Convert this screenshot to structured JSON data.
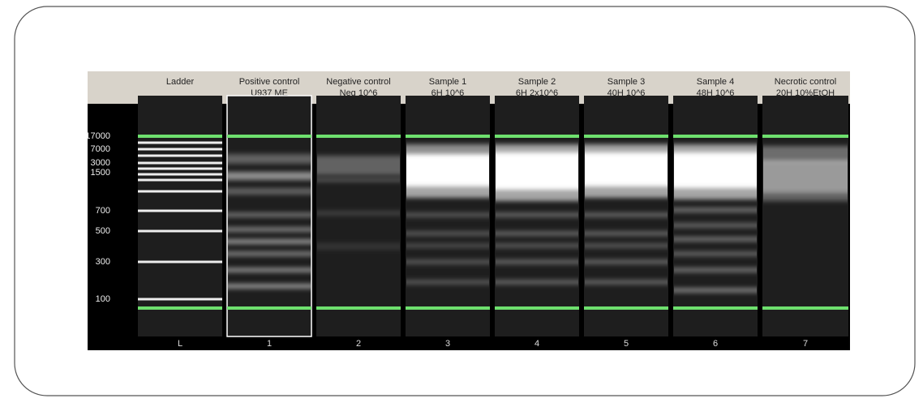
{
  "lanes": [
    {
      "title": "Ladder",
      "number": "L"
    },
    {
      "title": "Positive control",
      "subtitle": "U937 ME",
      "number": "1"
    },
    {
      "title": "Negative control",
      "subtitle": "Neg 10^6",
      "number": "2"
    },
    {
      "title": "Sample 1",
      "subtitle": "6H 10^6",
      "number": "3"
    },
    {
      "title": "Sample 2",
      "subtitle": "6H 2x10^6",
      "number": "4"
    },
    {
      "title": "Sample 3",
      "subtitle": "40H 10^6",
      "number": "5"
    },
    {
      "title": "Sample 4",
      "subtitle": "48H 10^6",
      "number": "6"
    },
    {
      "title": "Necrotic control",
      "subtitle": "20H 10%EtOH",
      "number": "7"
    }
  ],
  "ladder_sizes": [
    "17000",
    "7000",
    "3000",
    "1500",
    "700",
    "500",
    "300",
    "100"
  ]
}
